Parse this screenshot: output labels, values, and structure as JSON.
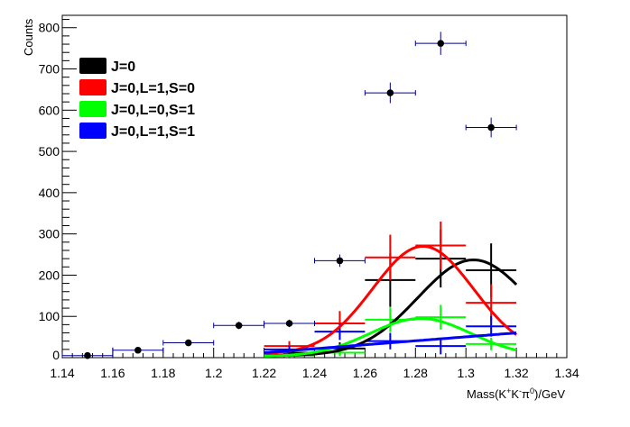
{
  "chart_data": {
    "type": "scatter",
    "title": "",
    "xlabel_parts": [
      "Mass(K",
      "+",
      "K",
      "-",
      "π",
      "0",
      ")/GeV"
    ],
    "ylabel": "Counts",
    "xlim": [
      1.14,
      1.34
    ],
    "ylim": [
      0,
      830
    ],
    "x_ticks": [
      "1.14",
      "1.16",
      "1.18",
      "1.2",
      "1.22",
      "1.24",
      "1.26",
      "1.28",
      "1.3",
      "1.32",
      "1.34"
    ],
    "y_ticks": [
      "0",
      "100",
      "200",
      "300",
      "400",
      "500",
      "600",
      "700",
      "800"
    ],
    "grid": false,
    "legend_position": "top-left",
    "legend": [
      {
        "label": "J=0",
        "color": "#000000"
      },
      {
        "label": "J=0,L=1,S=0",
        "color": "#ff0000"
      },
      {
        "label": "J=0,L=0,S=1",
        "color": "#00ff00"
      },
      {
        "label": "J=0,L=1,S=1",
        "color": "#0000ff"
      }
    ],
    "data_points": {
      "name": "Data",
      "color": "#000000",
      "x": [
        1.15,
        1.17,
        1.19,
        1.21,
        1.23,
        1.25,
        1.27,
        1.29,
        1.31
      ],
      "y": [
        5,
        18,
        36,
        78,
        83,
        235,
        642,
        762,
        558
      ],
      "yerr": [
        2,
        4,
        6,
        9,
        9,
        15,
        25,
        28,
        24
      ],
      "xerr": 0.01
    },
    "histograms": [
      {
        "name": "J=0",
        "color": "#000000",
        "x": [
          1.23,
          1.25,
          1.27,
          1.29,
          1.31
        ],
        "y": [
          12,
          22,
          188,
          240,
          212
        ],
        "yerr": [
          8,
          15,
          65,
          70,
          65
        ]
      },
      {
        "name": "J=0,L=1,S=0",
        "color": "#ff0000",
        "x": [
          1.23,
          1.25,
          1.27,
          1.29,
          1.31
        ],
        "y": [
          28,
          83,
          243,
          272,
          133
        ],
        "yerr": [
          12,
          30,
          55,
          58,
          45
        ]
      },
      {
        "name": "J=0,L=0,S=1",
        "color": "#00ff00",
        "x": [
          1.23,
          1.25,
          1.27,
          1.29,
          1.31
        ],
        "y": [
          5,
          12,
          92,
          98,
          33
        ],
        "yerr": [
          4,
          8,
          30,
          30,
          15
        ]
      },
      {
        "name": "J=0,L=1,S=1",
        "color": "#0000ff",
        "x": [
          1.23,
          1.25,
          1.27,
          1.29,
          1.31
        ],
        "y": [
          20,
          63,
          40,
          28,
          76
        ],
        "yerr": [
          8,
          20,
          20,
          20,
          25
        ]
      }
    ],
    "curves": [
      {
        "name": "J=0",
        "color": "#000000",
        "model": "gaussian",
        "amp": 232,
        "mean": 1.303,
        "sigma": 0.022,
        "base": 5,
        "xrange": [
          1.22,
          1.32
        ]
      },
      {
        "name": "J=0,L=1,S=0",
        "color": "#ff0000",
        "model": "gaussian",
        "amp": 262,
        "mean": 1.283,
        "sigma": 0.02,
        "base": 8,
        "xrange": [
          1.22,
          1.32
        ]
      },
      {
        "name": "J=0,L=0,S=1",
        "color": "#00ff00",
        "model": "gaussian",
        "amp": 92,
        "mean": 1.282,
        "sigma": 0.02,
        "base": 3,
        "xrange": [
          1.22,
          1.32
        ]
      },
      {
        "name": "J=0,L=1,S=1",
        "color": "#0000ff",
        "model": "linear",
        "y0": 12,
        "y1": 60,
        "xrange": [
          1.22,
          1.32
        ]
      }
    ]
  }
}
